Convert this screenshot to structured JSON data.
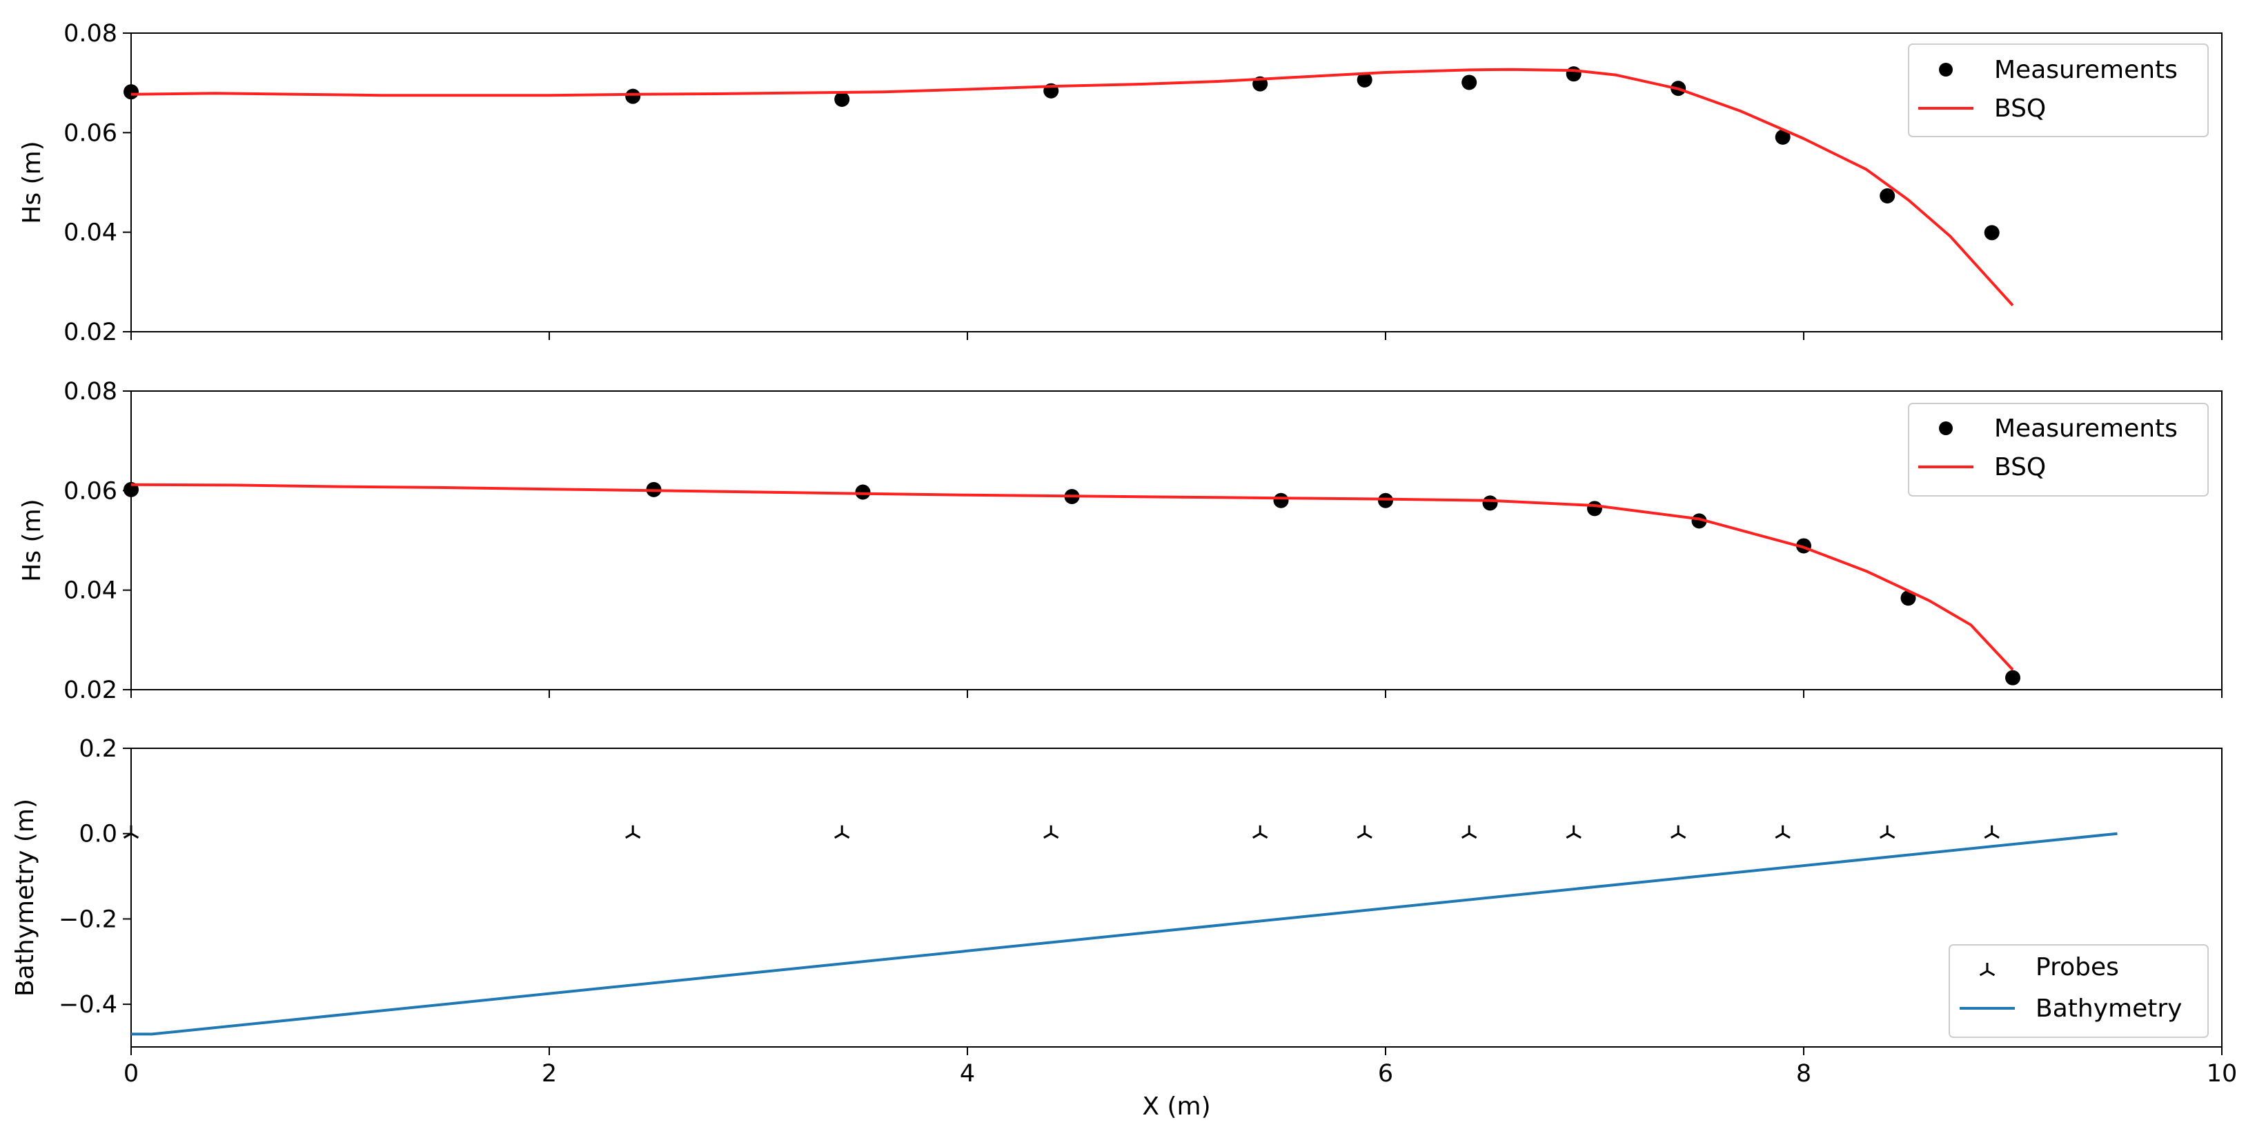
{
  "chart_data": [
    {
      "type": "line",
      "ylabel": "Hs (m)",
      "xlabel": "",
      "xlim": [
        0,
        10
      ],
      "ylim": [
        0.02,
        0.08
      ],
      "yticks": [
        "0.02",
        "0.04",
        "0.06",
        "0.08"
      ],
      "legend_position": "top-right",
      "series": [
        {
          "name": "Measurements",
          "kind": "scatter",
          "color": "#000000",
          "x": [
            0,
            2.4,
            3.4,
            4.4,
            5.4,
            5.9,
            6.4,
            6.9,
            7.4,
            7.9,
            8.4,
            8.9
          ],
          "y": [
            0.0682,
            0.0673,
            0.0667,
            0.0684,
            0.0698,
            0.0706,
            0.0701,
            0.0718,
            0.0689,
            0.0591,
            0.0473,
            0.0399
          ]
        },
        {
          "name": "BSQ",
          "kind": "line",
          "color": "#ff2020",
          "x": [
            0,
            0.4,
            0.8,
            1.2,
            1.6,
            2.0,
            2.4,
            2.8,
            3.2,
            3.6,
            4.0,
            4.4,
            4.8,
            5.2,
            5.6,
            6.0,
            6.4,
            6.6,
            6.9,
            7.1,
            7.4,
            7.7,
            8.0,
            8.3,
            8.5,
            8.7,
            9.0
          ],
          "y": [
            0.0677,
            0.0679,
            0.0677,
            0.0675,
            0.0675,
            0.0675,
            0.0677,
            0.0678,
            0.068,
            0.0682,
            0.0687,
            0.0693,
            0.0697,
            0.0703,
            0.0712,
            0.0721,
            0.0726,
            0.0727,
            0.0725,
            0.0716,
            0.0688,
            0.0643,
            0.0588,
            0.0526,
            0.0465,
            0.0392,
            0.0253
          ]
        }
      ]
    },
    {
      "type": "line",
      "ylabel": "Hs (m)",
      "xlabel": "",
      "xlim": [
        0,
        10
      ],
      "ylim": [
        0.02,
        0.08
      ],
      "yticks": [
        "0.02",
        "0.04",
        "0.06",
        "0.08"
      ],
      "legend_position": "top-right",
      "series": [
        {
          "name": "Measurements",
          "kind": "scatter",
          "color": "#000000",
          "x": [
            0,
            2.5,
            3.5,
            4.5,
            5.5,
            6.0,
            6.5,
            7.0,
            7.5,
            8.0,
            8.5,
            9.0
          ],
          "y": [
            0.0602,
            0.0602,
            0.0597,
            0.0588,
            0.058,
            0.058,
            0.0575,
            0.0564,
            0.0539,
            0.0489,
            0.0384,
            0.0224
          ]
        },
        {
          "name": "BSQ",
          "kind": "line",
          "color": "#ff2020",
          "x": [
            0,
            0.5,
            1.0,
            1.5,
            2.0,
            2.5,
            3.0,
            3.5,
            4.0,
            4.5,
            5.0,
            5.5,
            6.0,
            6.5,
            7.0,
            7.5,
            8.0,
            8.3,
            8.6,
            8.8,
            9.0
          ],
          "y": [
            0.0612,
            0.0611,
            0.0608,
            0.0606,
            0.0603,
            0.06,
            0.0597,
            0.0594,
            0.0591,
            0.0589,
            0.0587,
            0.0585,
            0.0583,
            0.058,
            0.057,
            0.0543,
            0.0486,
            0.0438,
            0.0379,
            0.033,
            0.024
          ]
        }
      ]
    },
    {
      "type": "line",
      "ylabel": "Bathymetry (m)",
      "xlabel": "X (m)",
      "xlim": [
        0,
        10
      ],
      "ylim": [
        -0.5,
        0.2
      ],
      "xticks": [
        "0",
        "2",
        "4",
        "6",
        "8",
        "10"
      ],
      "yticks": [
        "−0.4",
        "−0.2",
        "0.0",
        "0.2"
      ],
      "legend_position": "bottom-right",
      "series": [
        {
          "name": "Probes",
          "kind": "marker",
          "color": "#000000",
          "x": [
            0,
            2.4,
            3.4,
            4.4,
            5.4,
            5.9,
            6.4,
            6.9,
            7.4,
            7.9,
            8.4,
            8.9
          ],
          "y": [
            0,
            0,
            0,
            0,
            0,
            0,
            0,
            0,
            0,
            0,
            0,
            0
          ]
        },
        {
          "name": "Bathymetry",
          "kind": "line",
          "color": "#1f77b4",
          "x": [
            0,
            0.1,
            9.5
          ],
          "y": [
            -0.47,
            -0.47,
            0.0
          ]
        }
      ]
    }
  ]
}
